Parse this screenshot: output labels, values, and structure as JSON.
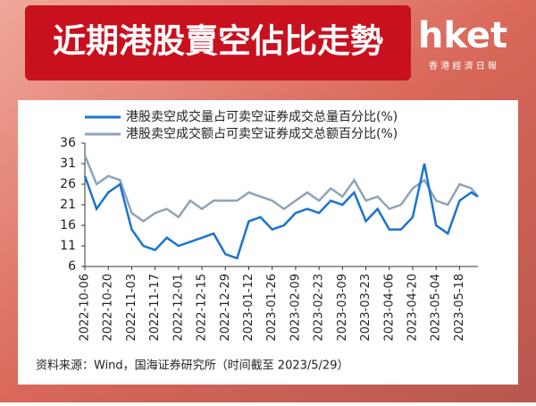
{
  "header": {
    "title": "近期港股賣空佔比走勢",
    "logo": "hket",
    "logo_sub": "香 港 經 濟 日 報"
  },
  "chart_data": {
    "type": "line",
    "x": [
      "2022-10-06",
      "2022-10-13",
      "2022-10-20",
      "2022-10-27",
      "2022-11-03",
      "2022-11-10",
      "2022-11-17",
      "2022-11-24",
      "2022-12-01",
      "2022-12-08",
      "2022-12-15",
      "2022-12-22",
      "2022-12-29",
      "2023-01-05",
      "2023-01-12",
      "2023-01-19",
      "2023-01-26",
      "2023-02-02",
      "2023-02-09",
      "2023-02-16",
      "2023-02-23",
      "2023-03-02",
      "2023-03-09",
      "2023-03-16",
      "2023-03-23",
      "2023-03-30",
      "2023-04-06",
      "2023-04-13",
      "2023-04-20",
      "2023-04-27",
      "2023-05-04",
      "2023-05-11",
      "2023-05-18",
      "2023-05-25",
      "2023-05-29"
    ],
    "xlim": [
      "2022-10-06",
      "2023-05-29"
    ],
    "xticks": [
      "2022-10-06",
      "2022-10-20",
      "2022-11-03",
      "2022-11-17",
      "2022-12-01",
      "2022-12-15",
      "2022-12-29",
      "2023-01-12",
      "2023-01-26",
      "2023-02-09",
      "2023-02-23",
      "2023-03-09",
      "2023-03-23",
      "2023-04-06",
      "2023-04-20",
      "2023-05-04",
      "2023-05-18"
    ],
    "series": [
      {
        "name": "港股卖空成交量占可卖空证券成交总量百分比(%)",
        "color": "#1a73d1",
        "values": [
          28,
          20,
          24,
          26,
          15,
          11,
          10,
          13,
          11,
          12,
          13,
          14,
          9,
          8,
          17,
          18,
          15,
          16,
          19,
          20,
          19,
          22,
          21,
          24,
          17,
          20,
          15,
          15,
          18,
          31,
          16,
          14,
          22,
          24,
          23
        ]
      },
      {
        "name": "港股卖空成交额占可卖空证券成交总额百分比(%)",
        "color": "#8fa3b8",
        "values": [
          33,
          26,
          28,
          27,
          19,
          17,
          19,
          20,
          18,
          22,
          20,
          22,
          22,
          22,
          24,
          23,
          22,
          20,
          22,
          24,
          22,
          25,
          23,
          27,
          22,
          23,
          20,
          21,
          25,
          27,
          22,
          21,
          26,
          25,
          23
        ]
      }
    ],
    "ylim": [
      6,
      36
    ],
    "yticks": [
      6,
      11,
      16,
      21,
      26,
      31,
      36
    ],
    "source": "资料来源：Wind，国海证券研究所（时间截至 2023/5/29）"
  }
}
